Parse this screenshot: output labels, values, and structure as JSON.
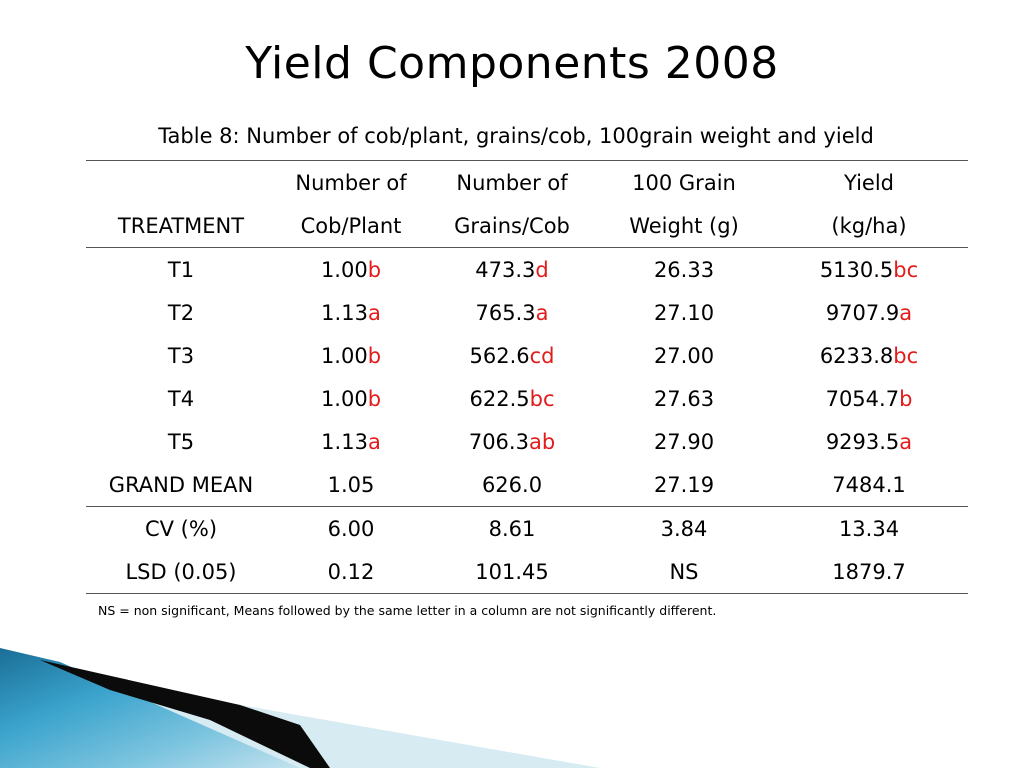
{
  "title": "Yield Components 2008",
  "caption": "Table 8: Number of cob/plant, grains/cob, 100grain weight and yield",
  "headers": {
    "row1": [
      "",
      "Number of",
      "Number of",
      "100 Grain",
      "Yield"
    ],
    "row2": [
      "TREATMENT",
      "Cob/Plant",
      "Grains/Cob",
      "Weight (g)",
      "(kg/ha)"
    ]
  },
  "rows": [
    {
      "treatment": "T1",
      "cob_plant": {
        "value": "1.00",
        "sig": "b"
      },
      "grains_cob": {
        "value": "473.3",
        "sig": "d"
      },
      "grain_weight": "26.33",
      "yield": {
        "value": "5130.5",
        "sig": "bc"
      }
    },
    {
      "treatment": "T2",
      "cob_plant": {
        "value": "1.13",
        "sig": "a"
      },
      "grains_cob": {
        "value": "765.3",
        "sig": "a"
      },
      "grain_weight": "27.10",
      "yield": {
        "value": "9707.9",
        "sig": "a"
      }
    },
    {
      "treatment": "T3",
      "cob_plant": {
        "value": "1.00",
        "sig": "b"
      },
      "grains_cob": {
        "value": "562.6",
        "sig": "cd"
      },
      "grain_weight": "27.00",
      "yield": {
        "value": "6233.8",
        "sig": "bc"
      }
    },
    {
      "treatment": "T4",
      "cob_plant": {
        "value": "1.00",
        "sig": "b"
      },
      "grains_cob": {
        "value": "622.5",
        "sig": "bc"
      },
      "grain_weight": "27.63",
      "yield": {
        "value": "7054.7",
        "sig": "b"
      }
    },
    {
      "treatment": "T5",
      "cob_plant": {
        "value": "1.13",
        "sig": "a"
      },
      "grains_cob": {
        "value": "706.3",
        "sig": "ab"
      },
      "grain_weight": "27.90",
      "yield": {
        "value": "9293.5",
        "sig": "a"
      }
    }
  ],
  "grand_mean": [
    "GRAND MEAN",
    "1.05",
    "626.0",
    "27.19",
    "7484.1"
  ],
  "cv": [
    "CV (%)",
    "6.00",
    "8.61",
    "3.84",
    "13.34"
  ],
  "lsd": [
    "LSD (0.05)",
    "0.12",
    "101.45",
    "NS",
    "1879.7"
  ],
  "footnote": "NS = non significant, Means followed by the same letter in a column are not significantly different.",
  "colors": {
    "significance_letter": "#e31b1b",
    "decor_dark": "#0b0b0b",
    "decor_blue": "#1f7fa8",
    "decor_light": "#d7ebf3"
  }
}
